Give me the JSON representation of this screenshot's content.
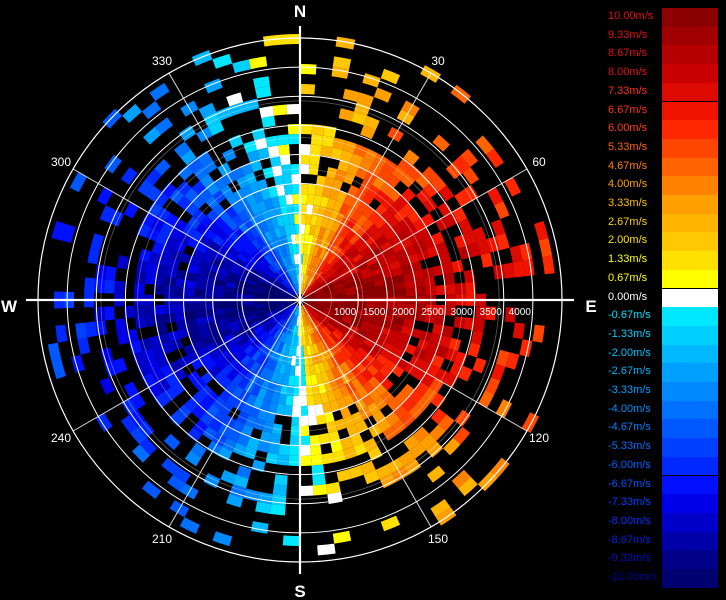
{
  "chart_data": {
    "type": "heatmap",
    "compass": {
      "north": "N",
      "south": "S",
      "east": "E",
      "west": "W"
    },
    "azimuth_labels": [
      "30",
      "60",
      "120",
      "150",
      "210",
      "240",
      "300",
      "330"
    ],
    "azimuth_values": [
      30,
      60,
      120,
      150,
      210,
      240,
      300,
      330
    ],
    "range_labels": [
      "1000",
      "1500",
      "2000",
      "2500",
      "3000",
      "3500",
      "4000"
    ],
    "range_values": [
      1000,
      1500,
      2000,
      2500,
      3000,
      3500,
      4000
    ],
    "range_max": 4500,
    "legend": {
      "labels": [
        "10.00m/s",
        "9.33m/s",
        "8.67m/s",
        "8.00m/s",
        "7.33m/s",
        "6.67m/s",
        "6.00m/s",
        "5.33m/s",
        "4.67m/s",
        "4.00m/s",
        "3.33m/s",
        "2.67m/s",
        "2.00m/s",
        "1.33m/s",
        "0.67m/s",
        "0.00m/s",
        "-0.67m/s",
        "-1.33m/s",
        "-2.00m/s",
        "-2.67m/s",
        "-3.33m/s",
        "-4.00m/s",
        "-4.67m/s",
        "-5.33m/s",
        "-6.00m/s",
        "-6.67m/s",
        "-7.33m/s",
        "-8.00m/s",
        "-8.67m/s",
        "-9.33m/s",
        "-10.00m/s"
      ],
      "values": [
        10.0,
        9.33,
        8.67,
        8.0,
        7.33,
        6.67,
        6.0,
        5.33,
        4.67,
        4.0,
        3.33,
        2.67,
        2.0,
        1.33,
        0.67,
        0.0,
        -0.67,
        -1.33,
        -2.0,
        -2.67,
        -3.33,
        -4.0,
        -4.67,
        -5.33,
        -6.0,
        -6.67,
        -7.33,
        -8.0,
        -8.67,
        -9.33,
        -10.0
      ],
      "colors": [
        "#8b0000",
        "#a00000",
        "#b40000",
        "#c80000",
        "#dc0a00",
        "#f01400",
        "#ff2800",
        "#ff4600",
        "#ff6400",
        "#ff8200",
        "#ffa000",
        "#ffb400",
        "#ffc800",
        "#ffe000",
        "#ffff00",
        "#ffffff",
        "#00e8ff",
        "#00d0ff",
        "#00b8ff",
        "#00a0ff",
        "#0088ff",
        "#0070ff",
        "#0058ff",
        "#0040ff",
        "#0028ff",
        "#0010ff",
        "#0000e8",
        "#0000c8",
        "#0000a8",
        "#000088",
        "#000070"
      ],
      "label_colors": [
        "#e01010",
        "#e01010",
        "#e01010",
        "#e01010",
        "#ff3010",
        "#ff3010",
        "#ff4010",
        "#ff6010",
        "#ff8010",
        "#ffa010",
        "#ffc010",
        "#ffd010",
        "#ffe010",
        "#ffff00",
        "#ffff00",
        "#ffffff",
        "#00e0ff",
        "#00d0ff",
        "#00c0ff",
        "#00b0ff",
        "#00a0ff",
        "#0090ff",
        "#0080ff",
        "#0070ff",
        "#0060ff",
        "#0050ff",
        "#0040ff",
        "#0030ff",
        "#0020e0",
        "#0010c0",
        "#0000a0"
      ]
    }
  }
}
